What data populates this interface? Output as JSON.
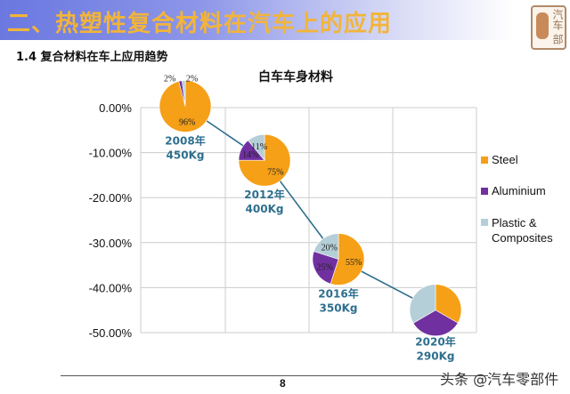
{
  "header": {
    "title": "二、热塑性复合材料在汽车上的应用",
    "logo_text": "汽车 部"
  },
  "subtitle": "1.4 复合材料在车上应用趋势",
  "footer": {
    "page_number": "8",
    "watermark": "头条 @汽车零部件"
  },
  "colors": {
    "steel": "#f5a017",
    "aluminium": "#7030a0",
    "plastic": "#b5cfd8",
    "label": "#2e6f8e",
    "grid": "#cccccc",
    "line": "#2e6f8e"
  },
  "chart_data": {
    "type": "pie",
    "title": "白车车身材料",
    "y_axis": {
      "ticks": [
        "0.00%",
        "-10.00%",
        "-20.00%",
        "-30.00%",
        "-40.00%",
        "-50.00%"
      ],
      "ylim": [
        -50,
        0
      ],
      "grid": true
    },
    "legend": {
      "placement": "right",
      "entries": [
        "Steel",
        "Aluminium",
        "Plastic & Composites"
      ]
    },
    "series_names": [
      "Steel",
      "Aluminium",
      "Plastic & Composites"
    ],
    "pies": [
      {
        "year_label": "2008年",
        "weight_label": "450Kg",
        "y_value": 0.3,
        "values": [
          96,
          2,
          2
        ],
        "labels": [
          "96%",
          "2%",
          "2%"
        ]
      },
      {
        "year_label": "2012年",
        "weight_label": "400Kg",
        "y_value": -11.7,
        "values": [
          75,
          14,
          11
        ],
        "labels": [
          "75%",
          "14%",
          "11%"
        ]
      },
      {
        "year_label": "2016年",
        "weight_label": "350Kg",
        "y_value": -33.7,
        "values": [
          55,
          25,
          20
        ],
        "labels": [
          "55%",
          "25%",
          "20%"
        ]
      },
      {
        "year_label": "2020年",
        "weight_label": "290Kg",
        "y_value": -45,
        "values": [
          33.3,
          33.3,
          33.4
        ],
        "labels": [
          "",
          "",
          ""
        ]
      }
    ]
  }
}
